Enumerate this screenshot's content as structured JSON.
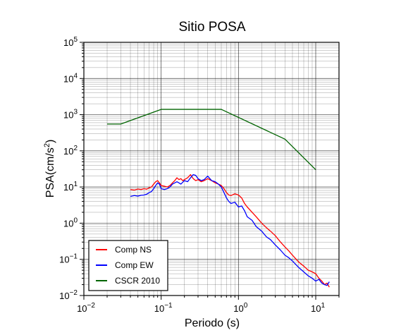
{
  "chart_data": {
    "type": "line",
    "title": "Sitio POSA",
    "xlabel": "Periodo (s)",
    "ylabel_base": "PSA(cm/s",
    "ylabel_sup": "2",
    "ylabel_close": ")",
    "xscale": "log",
    "yscale": "log",
    "xlim": [
      0.01,
      20
    ],
    "ylim": [
      0.01,
      100000
    ],
    "grid": true,
    "legend_position": "bottom-left",
    "x_ticks": [
      {
        "base": "10",
        "exp": "−2",
        "value": 0.01
      },
      {
        "base": "10",
        "exp": "−1",
        "value": 0.1
      },
      {
        "base": "10",
        "exp": "0",
        "value": 1
      },
      {
        "base": "10",
        "exp": "1",
        "value": 10
      }
    ],
    "y_ticks": [
      {
        "base": "10",
        "exp": "−2",
        "value": 0.01
      },
      {
        "base": "10",
        "exp": "−1",
        "value": 0.1
      },
      {
        "base": "10",
        "exp": "0",
        "value": 1
      },
      {
        "base": "10",
        "exp": "1",
        "value": 10
      },
      {
        "base": "10",
        "exp": "2",
        "value": 100
      },
      {
        "base": "10",
        "exp": "3",
        "value": 1000
      },
      {
        "base": "10",
        "exp": "4",
        "value": 10000
      },
      {
        "base": "10",
        "exp": "5",
        "value": 100000
      }
    ],
    "series": [
      {
        "name": "Comp NS",
        "color": "#ff0000",
        "x": [
          0.04,
          0.045,
          0.05,
          0.055,
          0.06,
          0.065,
          0.07,
          0.075,
          0.08,
          0.085,
          0.09,
          0.095,
          0.1,
          0.11,
          0.12,
          0.13,
          0.14,
          0.15,
          0.16,
          0.17,
          0.18,
          0.19,
          0.2,
          0.22,
          0.24,
          0.26,
          0.28,
          0.3,
          0.33,
          0.36,
          0.4,
          0.45,
          0.5,
          0.55,
          0.6,
          0.65,
          0.7,
          0.75,
          0.8,
          0.9,
          1.0,
          1.1,
          1.2,
          1.3,
          1.5,
          1.7,
          2.0,
          2.3,
          2.6,
          3.0,
          3.5,
          4.0,
          4.5,
          5.0,
          6.0,
          7.0,
          8.0,
          9.0,
          10.0,
          11.0,
          12.0,
          13.0,
          14.0,
          15.0
        ],
        "y": [
          8.5,
          8.2,
          8.8,
          8.5,
          9.0,
          8.7,
          9.5,
          10.0,
          12.0,
          14.0,
          15.0,
          13.0,
          11.0,
          10.5,
          10.0,
          11.0,
          13.0,
          15.0,
          18.0,
          16.0,
          17.0,
          15.0,
          16.0,
          18.0,
          22.0,
          17.0,
          15.0,
          16.0,
          14.0,
          15.0,
          17.0,
          15.0,
          13.0,
          12.0,
          11.0,
          9.0,
          7.0,
          6.0,
          5.8,
          6.5,
          6.0,
          5.0,
          3.5,
          2.8,
          2.0,
          1.5,
          1.0,
          0.75,
          0.6,
          0.45,
          0.3,
          0.22,
          0.17,
          0.13,
          0.085,
          0.065,
          0.05,
          0.045,
          0.04,
          0.03,
          0.025,
          0.02,
          0.022,
          0.017
        ]
      },
      {
        "name": "Comp EW",
        "color": "#0000ff",
        "x": [
          0.04,
          0.045,
          0.05,
          0.055,
          0.06,
          0.065,
          0.07,
          0.075,
          0.08,
          0.085,
          0.09,
          0.095,
          0.1,
          0.11,
          0.12,
          0.13,
          0.14,
          0.15,
          0.16,
          0.17,
          0.18,
          0.19,
          0.2,
          0.22,
          0.24,
          0.26,
          0.28,
          0.3,
          0.33,
          0.36,
          0.4,
          0.45,
          0.5,
          0.55,
          0.6,
          0.65,
          0.7,
          0.75,
          0.8,
          0.9,
          1.0,
          1.1,
          1.2,
          1.3,
          1.5,
          1.7,
          2.0,
          2.3,
          2.6,
          3.0,
          3.5,
          4.0,
          4.5,
          5.0,
          6.0,
          7.0,
          8.0,
          9.0,
          10.0,
          11.0,
          12.0,
          13.0,
          14.0,
          15.0
        ],
        "y": [
          5.5,
          5.8,
          5.6,
          5.9,
          6.0,
          6.3,
          7.0,
          7.5,
          9.0,
          11.0,
          13.0,
          12.0,
          9.0,
          8.5,
          9.0,
          10.0,
          12.0,
          13.0,
          14.0,
          13.0,
          12.0,
          13.5,
          15.0,
          14.0,
          18.0,
          22.0,
          21.0,
          17.0,
          15.0,
          16.0,
          20.0,
          15.0,
          14.0,
          12.0,
          10.0,
          7.0,
          5.0,
          4.0,
          3.5,
          3.8,
          2.8,
          3.0,
          2.2,
          1.5,
          1.2,
          0.8,
          0.6,
          0.42,
          0.35,
          0.25,
          0.18,
          0.13,
          0.11,
          0.09,
          0.06,
          0.045,
          0.035,
          0.03,
          0.025,
          0.028,
          0.022,
          0.02,
          0.019,
          0.024
        ]
      },
      {
        "name": "CSCR 2010",
        "color": "#006400",
        "x": [
          0.02,
          0.03,
          0.1,
          0.6,
          4.0,
          10.0
        ],
        "y": [
          550,
          550,
          1400,
          1400,
          210,
          30
        ]
      }
    ]
  }
}
